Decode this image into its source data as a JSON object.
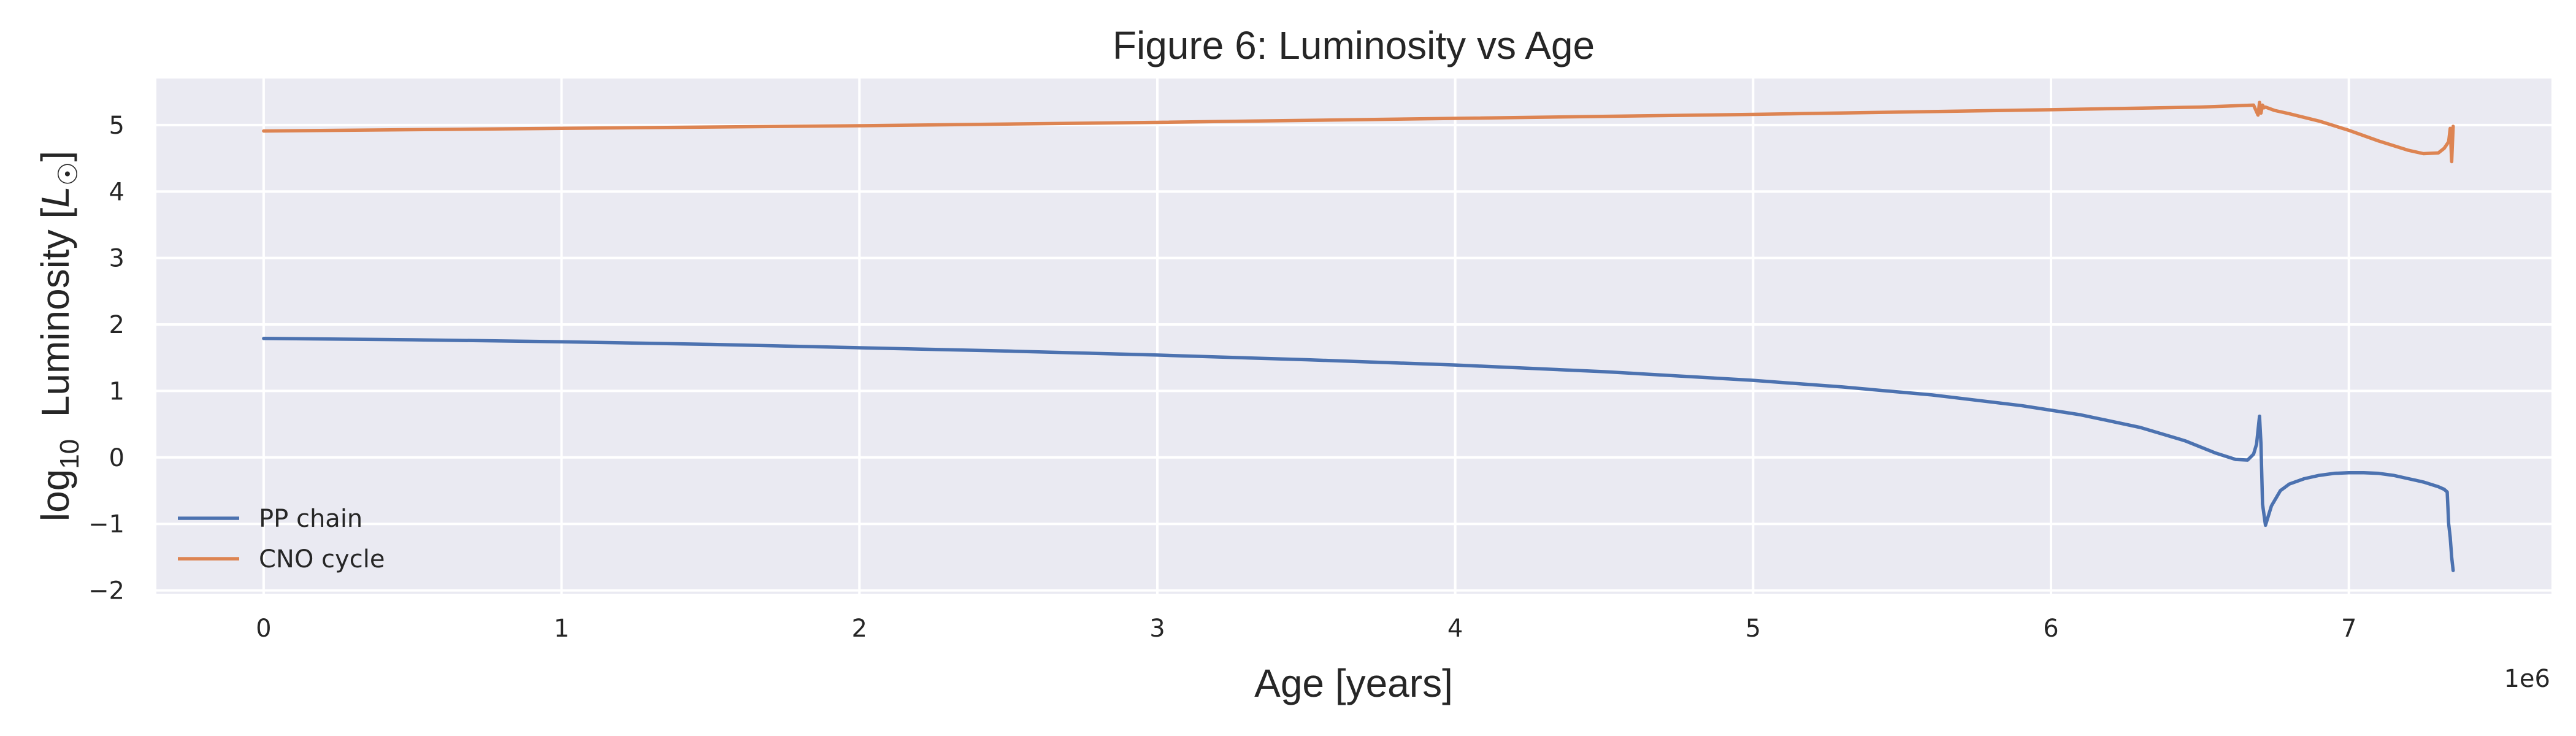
{
  "chart_data": {
    "type": "line",
    "title": "Figure 6: Luminosity vs Age",
    "xlabel": "Age [years]",
    "ylabel_prefix": "log",
    "ylabel_subscript": "10",
    "ylabel_main": "  Luminosity [",
    "ylabel_symbol": "L",
    "ylabel_sun": "☉",
    "ylabel_close": "]",
    "x_offset_label": "1e6",
    "x_scale": 1000000,
    "xlim": [
      -360000,
      7680000
    ],
    "ylim": [
      -2.05,
      5.7
    ],
    "xticks": [
      0,
      1000000,
      2000000,
      3000000,
      4000000,
      5000000,
      6000000,
      7000000
    ],
    "xtick_labels": [
      "0",
      "1",
      "2",
      "3",
      "4",
      "5",
      "6",
      "7"
    ],
    "yticks": [
      -2,
      -1,
      0,
      1,
      2,
      3,
      4,
      5
    ],
    "ytick_labels": [
      "−2",
      "−1",
      "0",
      "1",
      "2",
      "3",
      "4",
      "5"
    ],
    "grid": true,
    "legend_position": "lower-left",
    "series": [
      {
        "name": "PP chain",
        "color": "#4c72b0",
        "x": [
          0,
          500000,
          1000000,
          1500000,
          2000000,
          2500000,
          3000000,
          3500000,
          4000000,
          4500000,
          5000000,
          5300000,
          5600000,
          5900000,
          6100000,
          6300000,
          6450000,
          6550000,
          6620000,
          6660000,
          6680000,
          6690000,
          6700000,
          6705000,
          6710000,
          6720000,
          6740000,
          6770000,
          6800000,
          6850000,
          6900000,
          6950000,
          7000000,
          7050000,
          7100000,
          7150000,
          7200000,
          7250000,
          7300000,
          7320000,
          7330000,
          7335000,
          7340000,
          7345000,
          7350000
        ],
        "y": [
          1.79,
          1.77,
          1.74,
          1.7,
          1.65,
          1.6,
          1.54,
          1.47,
          1.39,
          1.29,
          1.16,
          1.06,
          0.94,
          0.78,
          0.64,
          0.45,
          0.25,
          0.07,
          -0.03,
          -0.04,
          0.05,
          0.2,
          0.62,
          0.2,
          -0.7,
          -1.02,
          -0.73,
          -0.5,
          -0.4,
          -0.32,
          -0.27,
          -0.24,
          -0.23,
          -0.23,
          -0.24,
          -0.27,
          -0.32,
          -0.37,
          -0.44,
          -0.48,
          -0.52,
          -1.0,
          -1.2,
          -1.5,
          -1.7
        ]
      },
      {
        "name": "CNO cycle",
        "color": "#dd8452",
        "x": [
          0,
          1000000,
          2000000,
          3000000,
          4000000,
          5000000,
          6000000,
          6500000,
          6680000,
          6695000,
          6700000,
          6705000,
          6710000,
          6715000,
          6720000,
          6750000,
          6800000,
          6900000,
          7000000,
          7100000,
          7200000,
          7250000,
          7300000,
          7320000,
          7335000,
          7340000,
          7345000,
          7350000
        ],
        "y": [
          4.91,
          4.95,
          4.99,
          5.04,
          5.1,
          5.16,
          5.23,
          5.27,
          5.3,
          5.15,
          5.34,
          5.18,
          5.3,
          5.26,
          5.27,
          5.22,
          5.17,
          5.06,
          4.92,
          4.76,
          4.62,
          4.57,
          4.58,
          4.65,
          4.75,
          4.95,
          4.45,
          4.98
        ]
      }
    ]
  }
}
